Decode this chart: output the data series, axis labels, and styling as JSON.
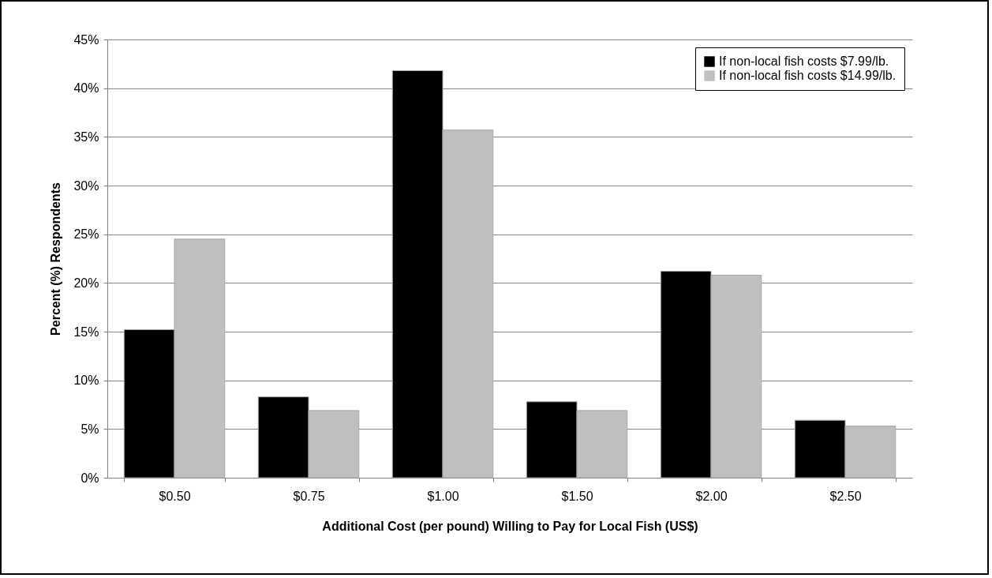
{
  "chart_data": {
    "type": "bar",
    "xlabel": "Additional Cost (per pound) Willing to Pay for Local Fish (US$)",
    "ylabel": "Percent (%) Respondents",
    "categories": [
      "$0.50",
      "$0.75",
      "$1.00",
      "$1.50",
      "$2.00",
      "$2.50"
    ],
    "series": [
      {
        "name": "If non-local fish costs $7.99/lb.",
        "color": "#000000",
        "values": [
          15.2,
          8.3,
          41.8,
          7.8,
          21.2,
          5.9
        ]
      },
      {
        "name": "If non-local fish costs $14.99/lb.",
        "color": "#bfbfbf",
        "values": [
          24.5,
          6.9,
          35.7,
          6.9,
          20.8,
          5.3
        ]
      }
    ],
    "ylim": [
      0,
      45
    ],
    "yticks": [
      {
        "value": 0,
        "label": "0%"
      },
      {
        "value": 5,
        "label": "5%"
      },
      {
        "value": 10,
        "label": "10%"
      },
      {
        "value": 15,
        "label": "15%"
      },
      {
        "value": 20,
        "label": "20%"
      },
      {
        "value": 25,
        "label": "25%"
      },
      {
        "value": 30,
        "label": "30%"
      },
      {
        "value": 35,
        "label": "35%"
      },
      {
        "value": 40,
        "label": "40%"
      },
      {
        "value": 45,
        "label": "45%"
      }
    ],
    "grid": "y",
    "legend": "top right"
  }
}
